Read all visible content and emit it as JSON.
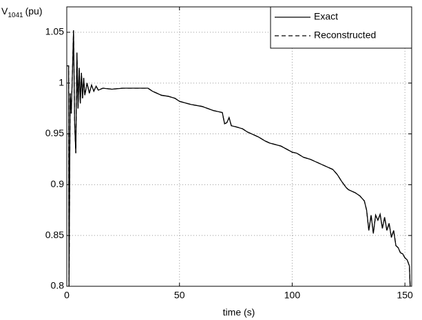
{
  "chart_data": {
    "type": "line",
    "ylabel": "V",
    "ylabel_subscript": "1041",
    "ylabel_unit": "(pu)",
    "xlabel": "time (s)",
    "x": [
      0,
      0.8,
      1,
      1.5,
      2,
      2.5,
      3,
      3.5,
      4,
      4.5,
      5,
      5.5,
      6,
      6.5,
      7,
      7.5,
      8,
      9,
      10,
      11,
      12,
      13,
      14,
      16,
      20,
      25,
      30,
      36,
      38,
      40,
      42,
      45,
      48,
      50,
      55,
      60,
      65,
      69,
      70,
      71,
      72,
      73,
      75,
      78,
      80,
      85,
      88,
      90,
      95,
      100,
      102,
      105,
      108,
      110,
      115,
      118,
      120,
      122,
      124,
      125,
      128,
      130,
      132,
      133,
      134,
      135,
      136,
      137,
      138,
      139,
      140,
      141,
      142,
      143,
      144,
      145,
      146,
      147,
      148,
      149,
      150,
      151,
      152,
      152.3
    ],
    "series": [
      {
        "name": "Exact",
        "color": "#000000",
        "dash": "none",
        "values": [
          1.017,
          1.017,
          0.8,
          0.99,
          0.97,
          1.01,
          1.052,
          0.96,
          0.931,
          1.03,
          0.975,
          1.015,
          0.98,
          1.01,
          0.985,
          1.005,
          0.988,
          1.0,
          0.99,
          0.998,
          0.992,
          0.997,
          0.993,
          0.995,
          0.994,
          0.995,
          0.995,
          0.995,
          0.992,
          0.99,
          0.988,
          0.987,
          0.985,
          0.982,
          0.979,
          0.977,
          0.973,
          0.971,
          0.96,
          0.961,
          0.966,
          0.958,
          0.957,
          0.955,
          0.952,
          0.947,
          0.943,
          0.941,
          0.938,
          0.932,
          0.931,
          0.927,
          0.925,
          0.923,
          0.918,
          0.915,
          0.91,
          0.903,
          0.897,
          0.895,
          0.892,
          0.889,
          0.884,
          0.875,
          0.855,
          0.87,
          0.852,
          0.87,
          0.865,
          0.871,
          0.857,
          0.868,
          0.855,
          0.862,
          0.848,
          0.855,
          0.84,
          0.838,
          0.833,
          0.832,
          0.828,
          0.826,
          0.82,
          0.8
        ]
      },
      {
        "name": "Reconstructed",
        "color": "#000000",
        "dash": "6,4",
        "values": [
          1.017,
          1.017,
          0.8,
          0.99,
          0.97,
          1.01,
          1.052,
          0.96,
          0.931,
          1.03,
          0.975,
          1.015,
          0.98,
          1.01,
          0.985,
          1.005,
          0.988,
          1.0,
          0.99,
          0.998,
          0.992,
          0.997,
          0.993,
          0.995,
          0.994,
          0.995,
          0.995,
          0.995,
          0.992,
          0.99,
          0.988,
          0.987,
          0.985,
          0.982,
          0.979,
          0.977,
          0.973,
          0.971,
          0.96,
          0.961,
          0.966,
          0.958,
          0.957,
          0.955,
          0.952,
          0.947,
          0.943,
          0.941,
          0.938,
          0.932,
          0.931,
          0.927,
          0.925,
          0.923,
          0.918,
          0.915,
          0.91,
          0.903,
          0.897,
          0.895,
          0.892,
          0.889,
          0.884,
          0.875,
          0.855,
          0.87,
          0.852,
          0.87,
          0.865,
          0.871,
          0.857,
          0.868,
          0.855,
          0.862,
          0.848,
          0.855,
          0.84,
          0.838,
          0.833,
          0.832,
          0.828,
          0.826,
          0.82,
          0.8
        ]
      }
    ],
    "xlim": [
      0,
      153
    ],
    "xticks": [
      0,
      50,
      100,
      150
    ],
    "ylim": [
      0.8,
      1.075
    ],
    "yticks": [
      0.8,
      0.85,
      0.9,
      0.95,
      1,
      1.05
    ],
    "grid": true,
    "legend": "top-right"
  }
}
